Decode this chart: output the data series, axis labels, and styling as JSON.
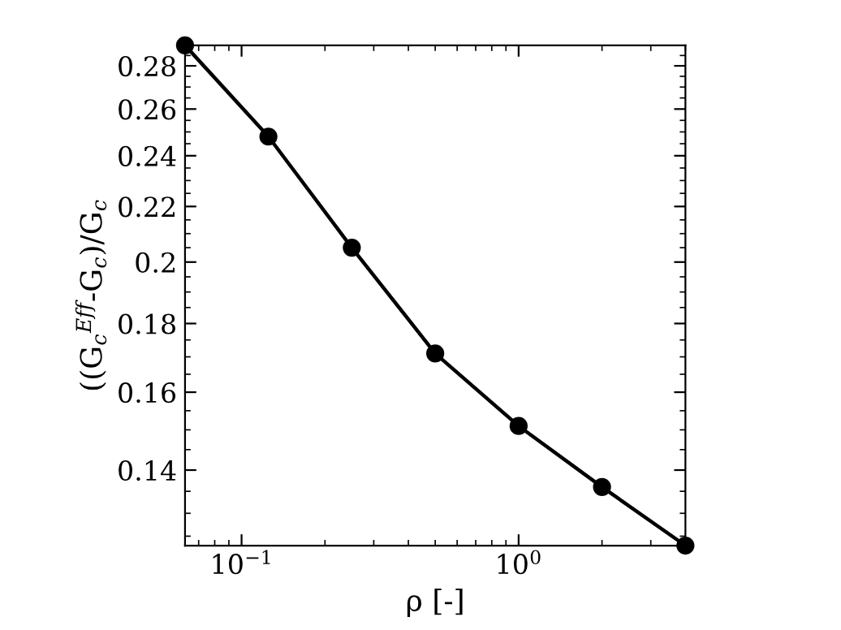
{
  "chart_data": {
    "type": "line",
    "xlabel": "ρ [-]",
    "ylabel": "((G$_{c}$$^{Eff}$-G$_{c}$)/G$_{c}$",
    "log": "xy",
    "x": [
      0.0625,
      0.125,
      0.25,
      0.5,
      1,
      2,
      4
    ],
    "series": [
      {
        "color": "#000000",
        "values": [
          0.29,
          0.248,
          0.205,
          0.171,
          0.151,
          0.136,
          0.123
        ]
      }
    ],
    "xlim": [
      0.0625,
      4
    ],
    "ylim": [
      0.123,
      0.29
    ],
    "xticks": [
      {
        "value": 0.1,
        "label": "10$^{−1}$"
      },
      {
        "value": 1,
        "label": "10$^{0}$"
      }
    ],
    "yticks": [
      0.14,
      0.16,
      0.18,
      {
        "value": 0.2,
        "label": "0.2"
      },
      0.22,
      0.24,
      0.26,
      0.28
    ],
    "marker": "circle",
    "line_style": "solid",
    "grid": false,
    "legend": false
  }
}
